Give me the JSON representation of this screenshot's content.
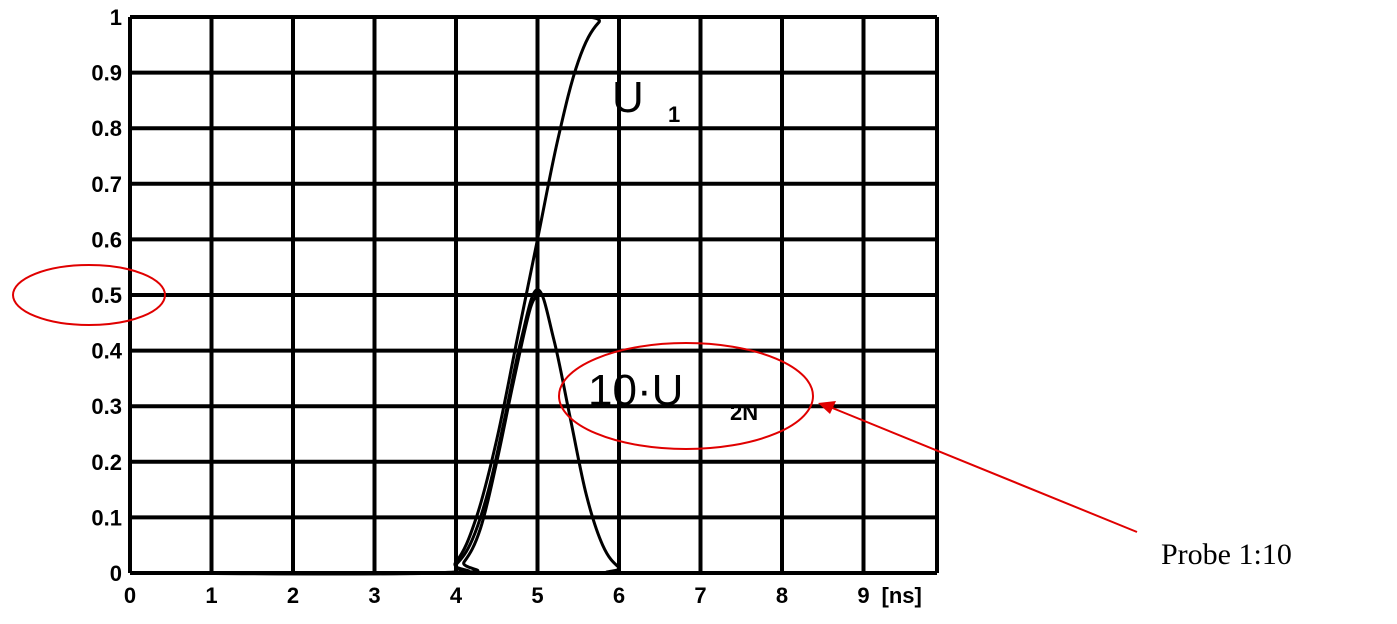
{
  "chart_data": {
    "type": "line",
    "xlim": [
      0,
      9.9
    ],
    "ylim": [
      0,
      1
    ],
    "grid": true,
    "x_ticks": [
      "0",
      "1",
      "2",
      "3",
      "4",
      "5",
      "6",
      "7",
      "8",
      "9"
    ],
    "x_unit": "[ns]",
    "y_ticks": [
      "0",
      "0.1",
      "0.2",
      "0.3",
      "0.4",
      "0.5",
      "0.6",
      "0.7",
      "0.8",
      "0.9",
      "1"
    ],
    "series": [
      {
        "label_main": "U",
        "label_sub": "1",
        "color": "#000000",
        "x": [
          0,
          3.7,
          4.0,
          4.25,
          4.5,
          4.75,
          5.0,
          5.25,
          5.5,
          5.75,
          6.0,
          9.9
        ],
        "y": [
          0,
          0,
          0.02,
          0.1,
          0.24,
          0.42,
          0.6,
          0.78,
          0.92,
          0.99,
          1.0,
          1.0
        ]
      },
      {
        "label_main": "10·U",
        "label_sub": "2N",
        "color": "#000000",
        "x": [
          0,
          3.8,
          4.0,
          4.2,
          4.4,
          4.6,
          4.8,
          5.0,
          5.2,
          5.4,
          5.6,
          5.8,
          6.0,
          6.2,
          9.9
        ],
        "y": [
          0,
          0,
          0.015,
          0.06,
          0.15,
          0.28,
          0.42,
          0.51,
          0.42,
          0.28,
          0.14,
          0.05,
          0.01,
          0,
          0
        ]
      },
      {
        "color": "#000000",
        "x": [
          0,
          3.9,
          4.1,
          4.3,
          4.5,
          4.7,
          4.9,
          5.0
        ],
        "y": [
          0,
          0,
          0.02,
          0.08,
          0.2,
          0.34,
          0.47,
          0.5
        ]
      }
    ],
    "annotations": {
      "probe_text": "Probe 1:10",
      "highlight_color": "#e00000"
    }
  }
}
